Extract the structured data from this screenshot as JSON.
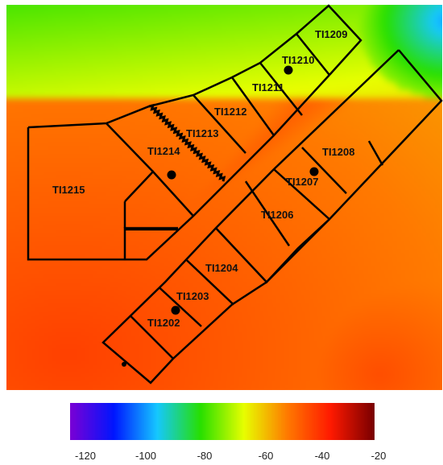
{
  "legend": {
    "min": -120,
    "max": -20,
    "ticks": [
      "-120",
      "-100",
      "-80",
      "-60",
      "-40",
      "-20"
    ],
    "colors": [
      "#7a00d6",
      "#0016ff",
      "#16c8ff",
      "#28e000",
      "#e8ff00",
      "#ff7a00",
      "#ff1a00",
      "#7a0000"
    ]
  },
  "rooms": [
    {
      "id": "TI1202",
      "label": "TI1202"
    },
    {
      "id": "TI1203",
      "label": "TI1203"
    },
    {
      "id": "TI1204",
      "label": "TI1204"
    },
    {
      "id": "TI1206",
      "label": "TI1206"
    },
    {
      "id": "TI1207",
      "label": "TI1207"
    },
    {
      "id": "TI1208",
      "label": "TI1208"
    },
    {
      "id": "TI1209",
      "label": "TI1209"
    },
    {
      "id": "TI1210",
      "label": "TI1210"
    },
    {
      "id": "TI1211",
      "label": "TI1211"
    },
    {
      "id": "TI1212",
      "label": "TI1212"
    },
    {
      "id": "TI1213",
      "label": "TI1213"
    },
    {
      "id": "TI1214",
      "label": "TI1214"
    },
    {
      "id": "TI1215",
      "label": "TI1215"
    }
  ],
  "access_points": [
    "TI1202",
    "TI1207",
    "TI1210",
    "TI1214"
  ]
}
